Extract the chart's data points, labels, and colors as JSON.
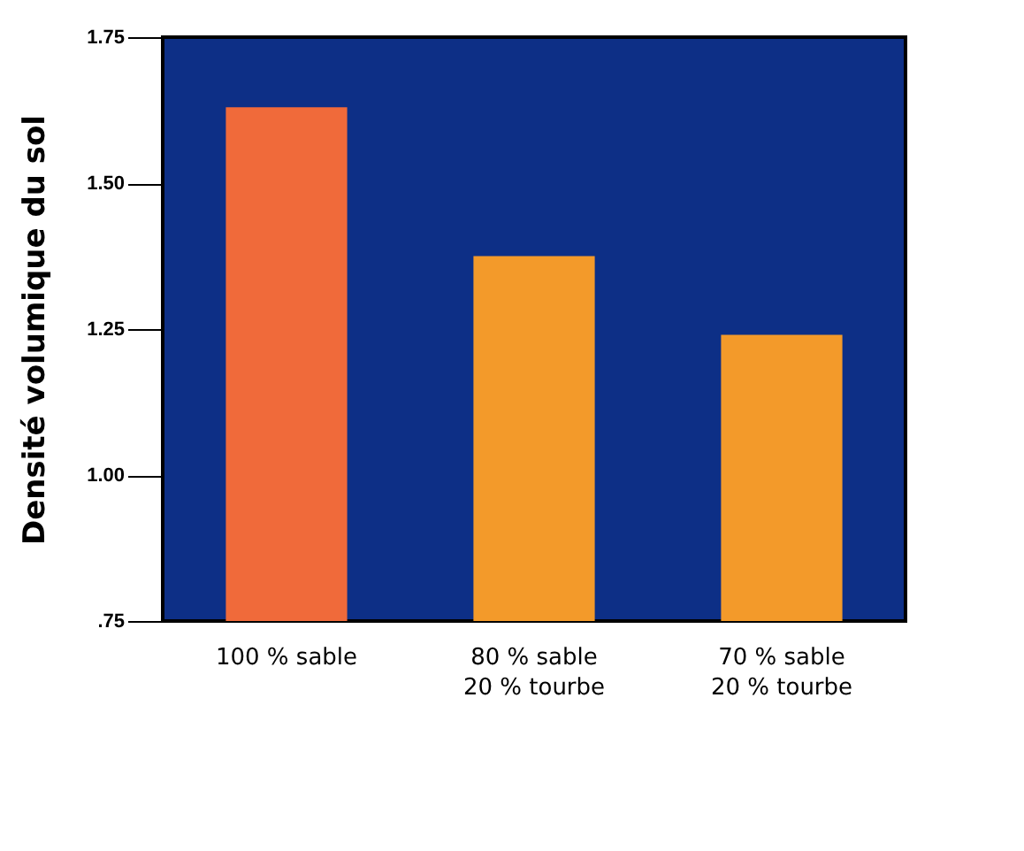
{
  "chart_data": {
    "type": "bar",
    "ylabel": "Densité volumique du sol",
    "categories": [
      "100 % sable",
      "80 % sable\n20 % tourbe",
      "70 % sable\n20 % tourbe"
    ],
    "values": [
      1.63,
      1.375,
      1.24
    ],
    "colors": [
      "#f06a3a",
      "#f39a2a",
      "#f39a2a"
    ],
    "ylim": [
      0.75,
      1.75
    ],
    "yticks": [
      {
        "value": 0.75,
        "label": ".75"
      },
      {
        "value": 1,
        "label": "1.00"
      },
      {
        "value": 1.25,
        "label": "1.25"
      },
      {
        "value": 1.5,
        "label": "1.50"
      },
      {
        "value": 1.75,
        "label": "1.75"
      }
    ],
    "grid": false
  }
}
